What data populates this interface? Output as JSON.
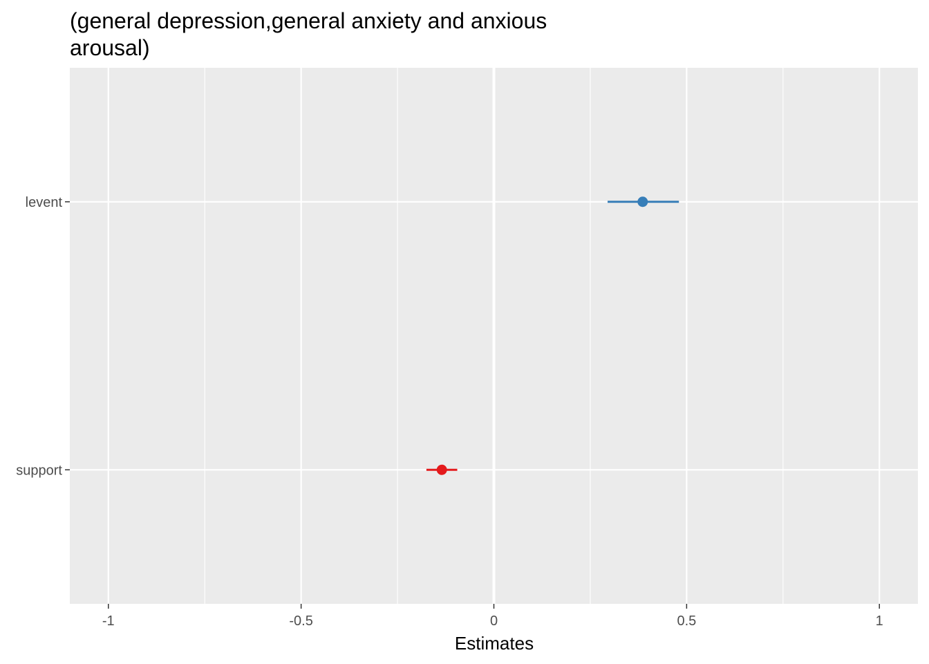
{
  "chart_data": {
    "type": "scatter",
    "title_lines": [
      "(general depression,general anxiety and anxious",
      "arousal)"
    ],
    "xlabel": "Estimates",
    "ylabel": "",
    "xlim": [
      -1.1,
      1.1
    ],
    "x_ticks": [
      -1,
      -0.5,
      0,
      0.5,
      1
    ],
    "x_tick_labels": [
      "-1",
      "-0.5",
      "0",
      "0.5",
      "1"
    ],
    "categories": [
      "levent",
      "support"
    ],
    "points": [
      {
        "term": "levent",
        "estimate": 0.386,
        "conf_low": 0.295,
        "conf_high": 0.48,
        "color": "#377eb8"
      },
      {
        "term": "support",
        "estimate": -0.135,
        "conf_low": -0.175,
        "conf_high": -0.095,
        "color": "#e41a1c"
      }
    ],
    "reference_line_x": 0,
    "grid": true,
    "panel_background": "#ebebeb",
    "grid_color": "#ffffff"
  }
}
